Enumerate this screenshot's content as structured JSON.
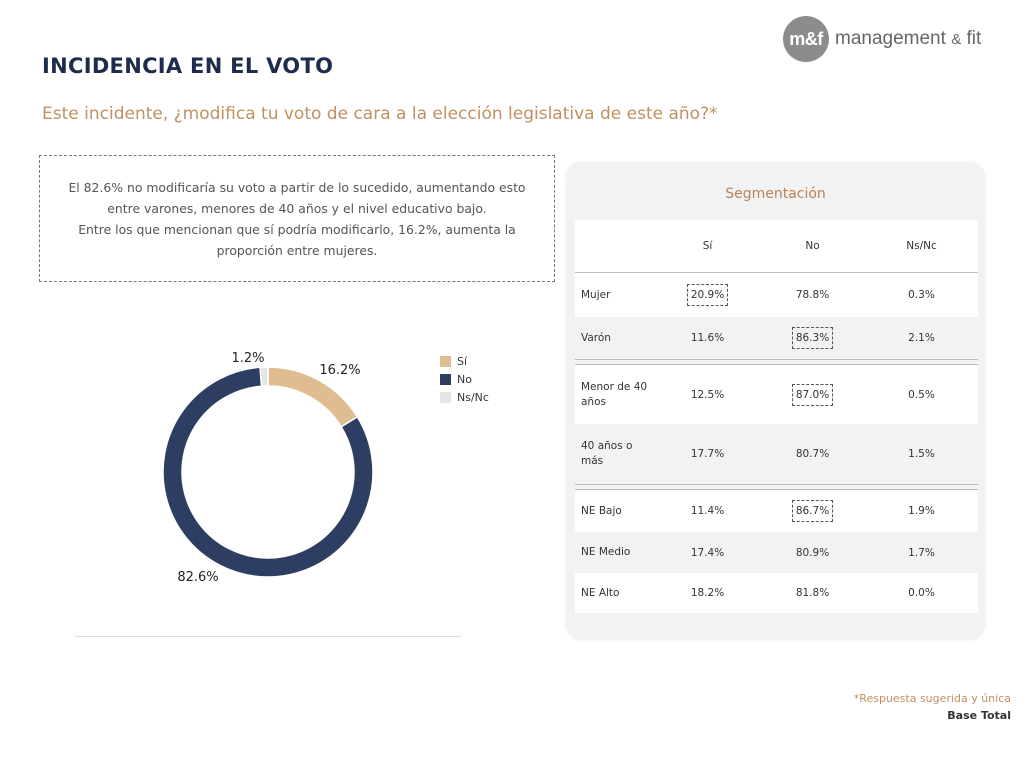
{
  "logo": {
    "mark": "m&f",
    "name": "management",
    "amp": "&",
    "fit": "fit"
  },
  "title": "INCIDENCIA EN EL VOTO",
  "question": "Este incidente, ¿modifica tu voto de cara a la elección legislativa de este año?*",
  "summary": {
    "line1": "El 82.6% no modificaría su voto a partir de lo sucedido, aumentando esto",
    "line2": "entre varones, menores de 40 años y el nivel educativo bajo.",
    "line3": "Entre los que mencionan que sí podría modificarlo, 16.2%, aumenta la",
    "line4": "proporción entre mujeres."
  },
  "chart_data": {
    "type": "pie",
    "donut": true,
    "categories": [
      "Sí",
      "No",
      "Ns/Nc"
    ],
    "values": [
      16.2,
      82.6,
      1.2
    ],
    "data_labels": [
      "16.2%",
      "82.6%",
      "1.2%"
    ],
    "colors": [
      "#dfbd91",
      "#2e3e62",
      "#e6e6e6"
    ],
    "legend_position": "right"
  },
  "segmentation": {
    "title": "Segmentación",
    "columns": [
      "",
      "Sí",
      "No",
      "Ns/Nc"
    ],
    "rows": [
      {
        "label": "Mujer",
        "si": "20.9%",
        "no": "78.8%",
        "nsnc": "0.3%",
        "boxed": "si"
      },
      {
        "label": "Varón",
        "si": "11.6%",
        "no": "86.3%",
        "nsnc": "2.1%",
        "boxed": "no"
      },
      {
        "label": "Menor de 40 años",
        "si": "12.5%",
        "no": "87.0%",
        "nsnc": "0.5%",
        "boxed": "no"
      },
      {
        "label": "40 años o más",
        "si": "17.7%",
        "no": "80.7%",
        "nsnc": "1.5%",
        "boxed": ""
      },
      {
        "label": "NE Bajo",
        "si": "11.4%",
        "no": "86.7%",
        "nsnc": "1.9%",
        "boxed": "no"
      },
      {
        "label": "NE Medio",
        "si": "17.4%",
        "no": "80.9%",
        "nsnc": "1.7%",
        "boxed": ""
      },
      {
        "label": "NE Alto",
        "si": "18.2%",
        "no": "81.8%",
        "nsnc": "0.0%",
        "boxed": ""
      }
    ]
  },
  "footnote": {
    "note": "*Respuesta sugerida y única",
    "base": "Base Total"
  }
}
